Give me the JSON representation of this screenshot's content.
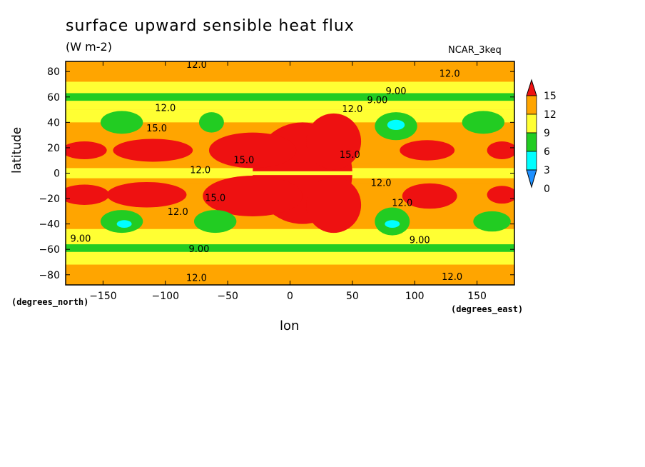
{
  "chart_data": {
    "type": "heatmap",
    "title": "surface upward sensible heat flux",
    "units": "(W m-2)",
    "model": "NCAR_3keq",
    "xlabel": "lon",
    "ylabel": "latitude",
    "x_unit": "(degrees_east)",
    "y_unit": "(degrees_north)",
    "xlim": [
      -180,
      180
    ],
    "ylim": [
      -88,
      88
    ],
    "x_ticks": [
      -150,
      -100,
      -50,
      0,
      50,
      100,
      150
    ],
    "y_ticks": [
      80,
      60,
      40,
      20,
      0,
      -20,
      -40,
      -60,
      -80
    ],
    "colorbar": {
      "levels": [
        0,
        3,
        6,
        9,
        12,
        15
      ],
      "colors": [
        "#1e90ff",
        "#00ffff",
        "#22cc22",
        "#ffff33",
        "#ffa500",
        "#ee1111"
      ],
      "tick_labels": [
        "0",
        "3",
        "6",
        "9",
        "12",
        "15"
      ]
    },
    "contour_labels": [
      {
        "text": "12.0",
        "lon": -75,
        "lat": 83
      },
      {
        "text": "12.0",
        "lon": 128,
        "lat": 76
      },
      {
        "text": "9.00",
        "lon": 85,
        "lat": 62
      },
      {
        "text": "9.00",
        "lon": 70,
        "lat": 55
      },
      {
        "text": "12.0",
        "lon": -100,
        "lat": 49
      },
      {
        "text": "12.0",
        "lon": 50,
        "lat": 48
      },
      {
        "text": "15.0",
        "lon": -107,
        "lat": 33
      },
      {
        "text": "15.0",
        "lon": -37,
        "lat": 8
      },
      {
        "text": "15.0",
        "lon": 48,
        "lat": 12
      },
      {
        "text": "12.0",
        "lon": -72,
        "lat": 0
      },
      {
        "text": "12.0",
        "lon": 73,
        "lat": -10
      },
      {
        "text": "15.0",
        "lon": -60,
        "lat": -22
      },
      {
        "text": "12.0",
        "lon": 90,
        "lat": -26
      },
      {
        "text": "12.0",
        "lon": -90,
        "lat": -33
      },
      {
        "text": "9.00",
        "lon": -168,
        "lat": -54
      },
      {
        "text": "9.00",
        "lon": -73,
        "lat": -62
      },
      {
        "text": "9.00",
        "lon": 104,
        "lat": -55
      },
      {
        "text": "12.0",
        "lon": -75,
        "lat": -85
      },
      {
        "text": "12.0",
        "lon": 130,
        "lat": -84
      }
    ]
  }
}
